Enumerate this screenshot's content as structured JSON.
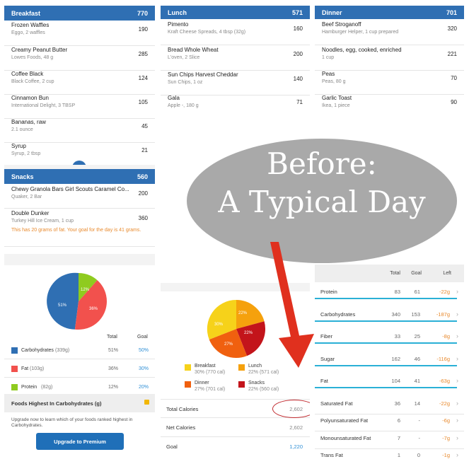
{
  "breakfast": {
    "title": "Breakfast",
    "total": "770",
    "items": [
      {
        "name": "Frozen Waffles",
        "sub": "Eggo, 2 waffles",
        "cal": "190"
      },
      {
        "name": "Creamy Peanut Butter",
        "sub": "Lowes Foods, 48 g",
        "cal": "285"
      },
      {
        "name": "Coffee Black",
        "sub": "Black Coffee, 2 cup",
        "cal": "124"
      },
      {
        "name": "Cinnamon Bun",
        "sub": "International Delight, 3 TBSP",
        "cal": "105"
      },
      {
        "name": "Bananas, raw",
        "sub": "2.1 ounce",
        "cal": "45"
      },
      {
        "name": "Syrup",
        "sub": "Syrup, 2 tbsp",
        "cal": "21"
      }
    ]
  },
  "lunch": {
    "title": "Lunch",
    "total": "571",
    "items": [
      {
        "name": "Pimento",
        "sub": "Kraft Cheese Spreads, 4 tbsp (32g)",
        "cal": "160"
      },
      {
        "name": "Bread Whole Wheat",
        "sub": "L'oven, 2 Slice",
        "cal": "200"
      },
      {
        "name": "Sun Chips Harvest Cheddar",
        "sub": "Sun Chips, 1 oz",
        "cal": "140"
      },
      {
        "name": "Gala",
        "sub": "Apple -, 180 g",
        "cal": "71"
      }
    ]
  },
  "dinner": {
    "title": "Dinner",
    "total": "701",
    "items": [
      {
        "name": "Beef Stroganoff",
        "sub": "Hamburger Helper, 1 cup prepared",
        "cal": "320"
      },
      {
        "name": "Noodles, egg, cooked, enriched",
        "sub": "1 cup",
        "cal": "221"
      },
      {
        "name": "Peas",
        "sub": "Peas, 80 g",
        "cal": "70"
      },
      {
        "name": "Garlic Toast",
        "sub": "Ikea, 1 piece",
        "cal": "90"
      }
    ]
  },
  "snacks": {
    "title": "Snacks",
    "total": "560",
    "items": [
      {
        "name": "Chewy Granola Bars Girl Scouts Caramel Co...",
        "sub": "Quaker, 2 Bar",
        "cal": "200"
      },
      {
        "name": "Double Dunker",
        "sub": "Turkey Hill Ice Cream, 1 cup",
        "cal": "360"
      }
    ],
    "warning": "This has 20 grams of fat. Your goal for the day is 41 grams."
  },
  "macros": {
    "col_total": "Total",
    "col_goal": "Goal",
    "rows": [
      {
        "label": "Carbohydrates",
        "amount": "(339g)",
        "total": "51%",
        "goal": "50%",
        "color": "#2f6fb3"
      },
      {
        "label": "Fat",
        "amount": "(103g)",
        "total": "36%",
        "goal": "30%",
        "color": "#f2514d"
      },
      {
        "label": "Protein",
        "amount": "(82g)",
        "total": "12%",
        "goal": "20%",
        "color": "#8fcb1f"
      }
    ],
    "pie_labels": [
      "51%",
      "36%",
      "12%"
    ],
    "highest_title": "Foods Highest In Carbohydrates (g)",
    "upgrade_text": "Upgrade now to learn which of your foods ranked highest in Carbohydrates.",
    "upgrade_button": "Upgrade to Premium"
  },
  "meals_pie": {
    "labels": [
      "22%",
      "22%",
      "27%",
      "30%"
    ],
    "legend": [
      {
        "name": "Breakfast",
        "sub": "30% (770 cal)",
        "color": "#f6d21a"
      },
      {
        "name": "Lunch",
        "sub": "22% (571 cal)",
        "color": "#f5a10d"
      },
      {
        "name": "Dinner",
        "sub": "27% (701 cal)",
        "color": "#f0600f"
      },
      {
        "name": "Snacks",
        "sub": "22% (560 cal)",
        "color": "#c3141b"
      }
    ]
  },
  "summary": [
    {
      "label": "Total Calories",
      "value": "2,602"
    },
    {
      "label": "Net Calories",
      "value": "2,602"
    },
    {
      "label": "Goal",
      "value": "1,220"
    }
  ],
  "nutrients": {
    "col_total": "Total",
    "col_goal": "Goal",
    "col_left": "Left",
    "rows": [
      {
        "label": "Protein",
        "total": "83",
        "goal": "61",
        "left": "-22g",
        "progress": 1.0
      },
      {
        "label": "Carbohydrates",
        "total": "340",
        "goal": "153",
        "left": "-187g",
        "progress": 1.0
      },
      {
        "label": "Fiber",
        "total": "33",
        "goal": "25",
        "left": "-8g",
        "progress": 1.0
      },
      {
        "label": "Sugar",
        "total": "162",
        "goal": "46",
        "left": "-116g",
        "progress": 1.0
      },
      {
        "label": "Fat",
        "total": "104",
        "goal": "41",
        "left": "-63g",
        "progress": 1.0
      },
      {
        "label": "Saturated Fat",
        "total": "36",
        "goal": "14",
        "left": "-22g"
      },
      {
        "label": "Polyunsaturated Fat",
        "total": "6",
        "goal": "-",
        "left": "-6g"
      },
      {
        "label": "Monounsaturated Fat",
        "total": "7",
        "goal": "-",
        "left": "-7g"
      },
      {
        "label": "Trans Fat",
        "total": "1",
        "goal": "0",
        "left": "-1g"
      }
    ]
  },
  "overlay": {
    "line1": "Before:",
    "line2": "A Typical Day"
  },
  "colors": {
    "header": "#2f6fb3",
    "accent_orange": "#e8892c",
    "arrow": "#e0301e",
    "circle": "#c0282d"
  }
}
